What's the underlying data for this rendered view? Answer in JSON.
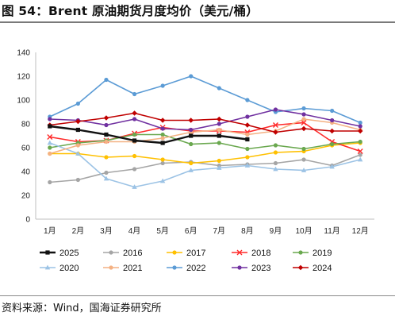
{
  "header": {
    "title": "图 54：Brent 原油期货月度均价（美元/桶）"
  },
  "footer": {
    "source": "资料来源：Wind，国海证券研究所"
  },
  "chart_data": {
    "type": "line",
    "categories": [
      "1月",
      "2月",
      "3月",
      "4月",
      "5月",
      "6月",
      "7月",
      "8月",
      "9月",
      "10月",
      "11月",
      "12月"
    ],
    "ylim": [
      0,
      140
    ],
    "yticks": [
      0,
      20,
      40,
      60,
      80,
      100,
      120,
      140
    ],
    "grid": false,
    "legend_position": "bottom",
    "series": [
      {
        "name": "2025",
        "color": "#111111",
        "marker": "square",
        "values": [
          78,
          75,
          71,
          66,
          64,
          70,
          70,
          67,
          null,
          null,
          null,
          null
        ]
      },
      {
        "name": "2016",
        "color": "#a5a5a5",
        "marker": "circle",
        "values": [
          31,
          33,
          39,
          42,
          47,
          48,
          45,
          46,
          47,
          50,
          45,
          54
        ]
      },
      {
        "name": "2017",
        "color": "#ffc000",
        "marker": "circle",
        "values": [
          55,
          55,
          52,
          53,
          50,
          47,
          49,
          52,
          56,
          57,
          62,
          64
        ]
      },
      {
        "name": "2018",
        "color": "#ff2a2a",
        "marker": "x",
        "values": [
          69,
          65,
          66,
          72,
          77,
          74,
          74,
          73,
          79,
          81,
          65,
          57
        ]
      },
      {
        "name": "2019",
        "color": "#6aa84f",
        "marker": "circle",
        "values": [
          60,
          64,
          66,
          71,
          71,
          63,
          64,
          59,
          62,
          59,
          63,
          65
        ]
      },
      {
        "name": "2020",
        "color": "#9cc3e5",
        "marker": "triangle",
        "values": [
          64,
          55,
          34,
          27,
          32,
          41,
          43,
          45,
          42,
          41,
          44,
          50
        ]
      },
      {
        "name": "2021",
        "color": "#f4b183",
        "marker": "circle",
        "values": [
          55,
          62,
          65,
          65,
          68,
          73,
          75,
          71,
          74,
          84,
          81,
          75
        ]
      },
      {
        "name": "2022",
        "color": "#5b9bd5",
        "marker": "circle",
        "values": [
          86,
          97,
          117,
          105,
          112,
          120,
          110,
          100,
          90,
          93,
          91,
          81
        ]
      },
      {
        "name": "2023",
        "color": "#7030a0",
        "marker": "circle",
        "values": [
          84,
          83,
          79,
          84,
          76,
          75,
          80,
          86,
          92,
          88,
          83,
          78
        ]
      },
      {
        "name": "2024",
        "color": "#c00000",
        "marker": "diamond",
        "values": [
          79,
          82,
          85,
          89,
          83,
          83,
          84,
          79,
          73,
          76,
          74,
          74
        ]
      }
    ]
  }
}
